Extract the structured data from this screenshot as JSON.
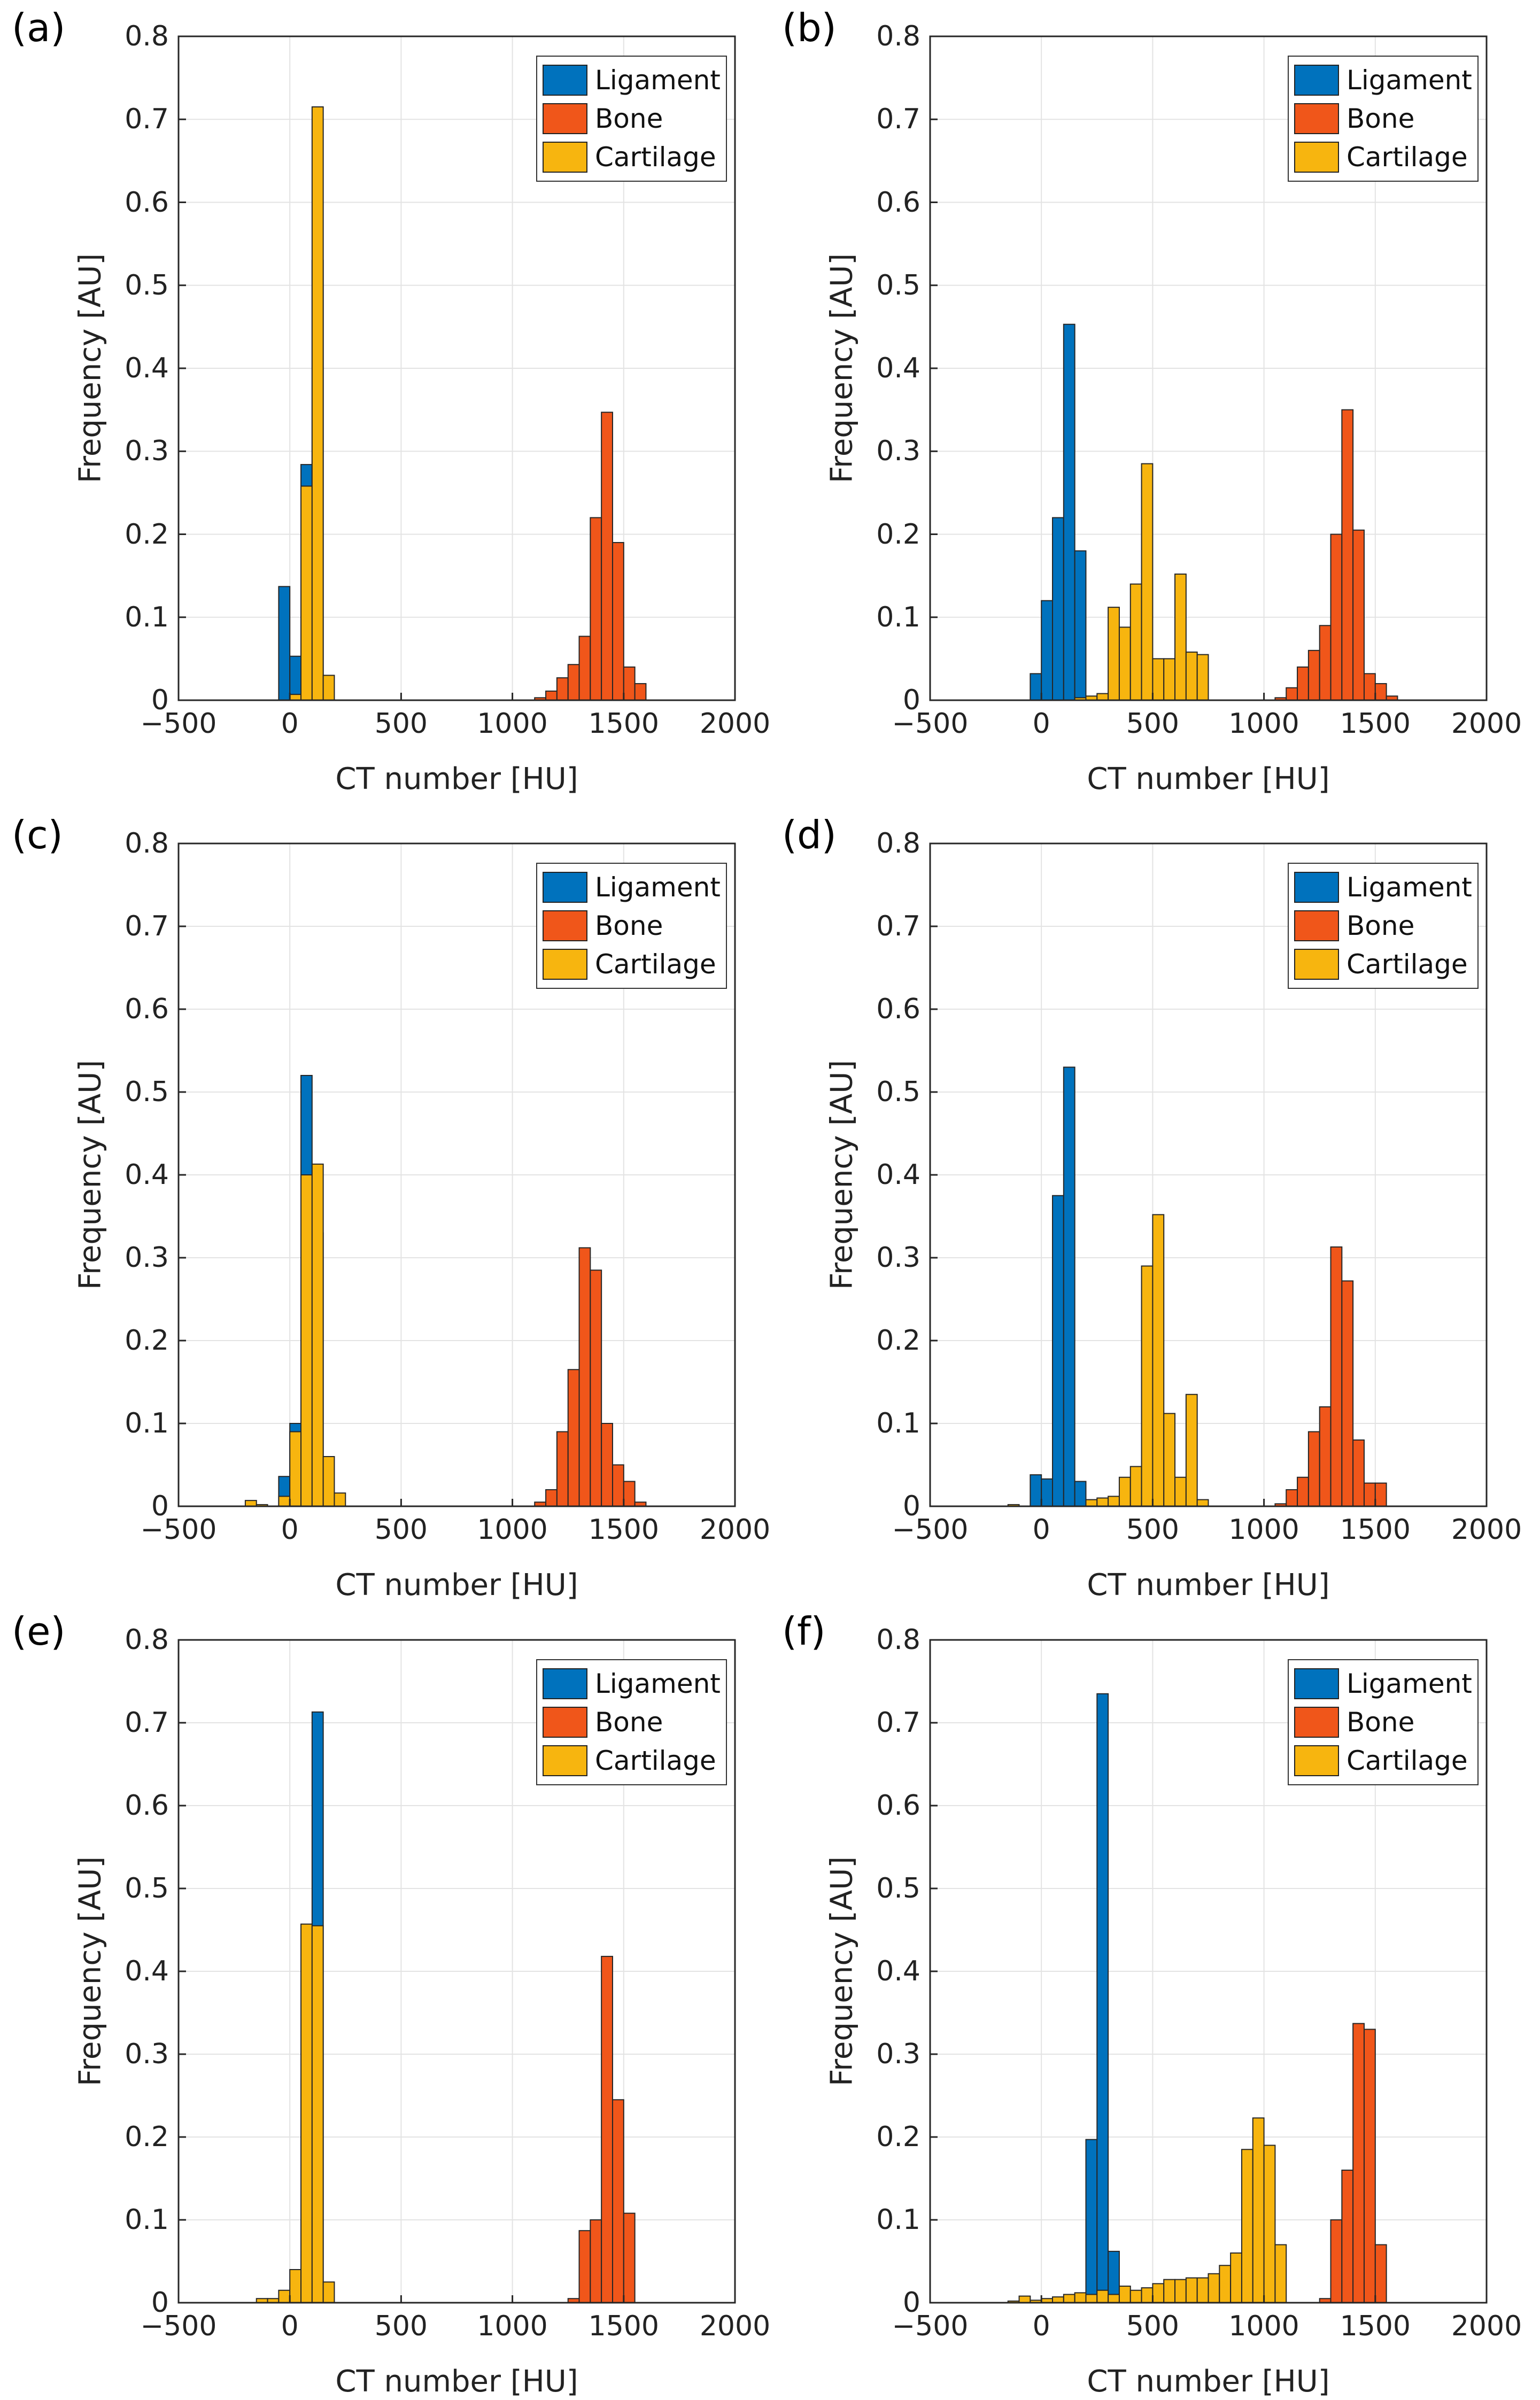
{
  "colors": {
    "ligament": "#0072BD",
    "bone": "#F0561A",
    "cartilage": "#F7B50F",
    "grid": "#E3E3E3",
    "axis": "#262626",
    "bar_edge": "#262626"
  },
  "chart_data": [
    {
      "type": "bar",
      "panel_label": "(a)",
      "xlabel": "CT number [HU]",
      "ylabel": "Frequency [AU]",
      "xlim": [
        -500,
        2000
      ],
      "ylim": [
        0,
        0.8
      ],
      "xticks": [
        -500,
        0,
        500,
        1000,
        1500,
        2000
      ],
      "yticks": [
        0,
        0.1,
        0.2,
        0.3,
        0.4,
        0.5,
        0.6,
        0.7,
        0.8
      ],
      "xtick_labels": [
        "−500",
        "0",
        "500",
        "1000",
        "1500",
        "2000"
      ],
      "ytick_labels": [
        "0",
        "0.1",
        "0.2",
        "0.3",
        "0.4",
        "0.5",
        "0.6",
        "0.7",
        "0.8"
      ],
      "grid": true,
      "legend_position": "top-right",
      "bin_width": 50,
      "series": [
        {
          "name": "Ligament",
          "color_key": "ligament",
          "bins": [
            [
              -50,
              0.137
            ],
            [
              0,
              0.053
            ],
            [
              50,
              0.284
            ],
            [
              100,
              0.53
            ]
          ]
        },
        {
          "name": "Bone",
          "color_key": "bone",
          "bins": [
            [
              1100,
              0.003
            ],
            [
              1150,
              0.011
            ],
            [
              1200,
              0.027
            ],
            [
              1250,
              0.043
            ],
            [
              1300,
              0.077
            ],
            [
              1350,
              0.22
            ],
            [
              1400,
              0.347
            ],
            [
              1450,
              0.19
            ],
            [
              1500,
              0.04
            ],
            [
              1550,
              0.02
            ]
          ]
        },
        {
          "name": "Cartilage",
          "color_key": "cartilage",
          "bins": [
            [
              0,
              0.007
            ],
            [
              50,
              0.258
            ],
            [
              100,
              0.715
            ],
            [
              150,
              0.03
            ]
          ]
        }
      ]
    },
    {
      "type": "bar",
      "panel_label": "(b)",
      "xlabel": "CT number [HU]",
      "ylabel": "Frequency [AU]",
      "xlim": [
        -500,
        2000
      ],
      "ylim": [
        0,
        0.8
      ],
      "xticks": [
        -500,
        0,
        500,
        1000,
        1500,
        2000
      ],
      "yticks": [
        0,
        0.1,
        0.2,
        0.3,
        0.4,
        0.5,
        0.6,
        0.7,
        0.8
      ],
      "xtick_labels": [
        "−500",
        "0",
        "500",
        "1000",
        "1500",
        "2000"
      ],
      "ytick_labels": [
        "0",
        "0.1",
        "0.2",
        "0.3",
        "0.4",
        "0.5",
        "0.6",
        "0.7",
        "0.8"
      ],
      "grid": true,
      "legend_position": "top-right",
      "bin_width": 50,
      "series": [
        {
          "name": "Ligament",
          "color_key": "ligament",
          "bins": [
            [
              -50,
              0.032
            ],
            [
              0,
              0.12
            ],
            [
              50,
              0.22
            ],
            [
              100,
              0.453
            ],
            [
              150,
              0.18
            ]
          ]
        },
        {
          "name": "Bone",
          "color_key": "bone",
          "bins": [
            [
              1050,
              0.003
            ],
            [
              1100,
              0.015
            ],
            [
              1150,
              0.04
            ],
            [
              1200,
              0.06
            ],
            [
              1250,
              0.09
            ],
            [
              1300,
              0.2
            ],
            [
              1350,
              0.35
            ],
            [
              1400,
              0.205
            ],
            [
              1450,
              0.032
            ],
            [
              1500,
              0.02
            ],
            [
              1550,
              0.005
            ]
          ]
        },
        {
          "name": "Cartilage",
          "color_key": "cartilage",
          "bins": [
            [
              150,
              0.003
            ],
            [
              200,
              0.005
            ],
            [
              250,
              0.008
            ],
            [
              300,
              0.112
            ],
            [
              350,
              0.088
            ],
            [
              400,
              0.14
            ],
            [
              450,
              0.285
            ],
            [
              500,
              0.05
            ],
            [
              550,
              0.05
            ],
            [
              600,
              0.152
            ],
            [
              650,
              0.058
            ],
            [
              700,
              0.055
            ]
          ]
        }
      ]
    },
    {
      "type": "bar",
      "panel_label": "(c)",
      "xlabel": "CT number [HU]",
      "ylabel": "Frequency [AU]",
      "xlim": [
        -500,
        2000
      ],
      "ylim": [
        0,
        0.8
      ],
      "xticks": [
        -500,
        0,
        500,
        1000,
        1500,
        2000
      ],
      "yticks": [
        0,
        0.1,
        0.2,
        0.3,
        0.4,
        0.5,
        0.6,
        0.7,
        0.8
      ],
      "xtick_labels": [
        "−500",
        "0",
        "500",
        "1000",
        "1500",
        "2000"
      ],
      "ytick_labels": [
        "0",
        "0.1",
        "0.2",
        "0.3",
        "0.4",
        "0.5",
        "0.6",
        "0.7",
        "0.8"
      ],
      "grid": true,
      "legend_position": "top-right",
      "bin_width": 50,
      "series": [
        {
          "name": "Ligament",
          "color_key": "ligament",
          "bins": [
            [
              -50,
              0.036
            ],
            [
              0,
              0.1
            ],
            [
              50,
              0.52
            ],
            [
              100,
              0.33
            ]
          ]
        },
        {
          "name": "Bone",
          "color_key": "bone",
          "bins": [
            [
              1100,
              0.005
            ],
            [
              1150,
              0.02
            ],
            [
              1200,
              0.09
            ],
            [
              1250,
              0.165
            ],
            [
              1300,
              0.312
            ],
            [
              1350,
              0.285
            ],
            [
              1400,
              0.1
            ],
            [
              1450,
              0.05
            ],
            [
              1500,
              0.03
            ],
            [
              1550,
              0.005
            ]
          ]
        },
        {
          "name": "Cartilage",
          "color_key": "cartilage",
          "bins": [
            [
              -200,
              0.007
            ],
            [
              -150,
              0.002
            ],
            [
              -50,
              0.012
            ],
            [
              0,
              0.09
            ],
            [
              50,
              0.4
            ],
            [
              100,
              0.413
            ],
            [
              150,
              0.06
            ],
            [
              200,
              0.016
            ]
          ]
        }
      ]
    },
    {
      "type": "bar",
      "panel_label": "(d)",
      "xlabel": "CT number [HU]",
      "ylabel": "Frequency [AU]",
      "xlim": [
        -500,
        2000
      ],
      "ylim": [
        0,
        0.8
      ],
      "xticks": [
        -500,
        0,
        500,
        1000,
        1500,
        2000
      ],
      "yticks": [
        0,
        0.1,
        0.2,
        0.3,
        0.4,
        0.5,
        0.6,
        0.7,
        0.8
      ],
      "xtick_labels": [
        "−500",
        "0",
        "500",
        "1000",
        "1500",
        "2000"
      ],
      "ytick_labels": [
        "0",
        "0.1",
        "0.2",
        "0.3",
        "0.4",
        "0.5",
        "0.6",
        "0.7",
        "0.8"
      ],
      "grid": true,
      "legend_position": "top-right",
      "bin_width": 50,
      "series": [
        {
          "name": "Ligament",
          "color_key": "ligament",
          "bins": [
            [
              -50,
              0.038
            ],
            [
              0,
              0.033
            ],
            [
              50,
              0.375
            ],
            [
              100,
              0.53
            ],
            [
              150,
              0.03
            ]
          ]
        },
        {
          "name": "Bone",
          "color_key": "bone",
          "bins": [
            [
              1050,
              0.003
            ],
            [
              1100,
              0.02
            ],
            [
              1150,
              0.035
            ],
            [
              1200,
              0.09
            ],
            [
              1250,
              0.12
            ],
            [
              1300,
              0.313
            ],
            [
              1350,
              0.272
            ],
            [
              1400,
              0.08
            ],
            [
              1450,
              0.028
            ],
            [
              1500,
              0.028
            ]
          ]
        },
        {
          "name": "Cartilage",
          "color_key": "cartilage",
          "bins": [
            [
              -150,
              0.002
            ],
            [
              200,
              0.008
            ],
            [
              250,
              0.01
            ],
            [
              300,
              0.012
            ],
            [
              350,
              0.035
            ],
            [
              400,
              0.048
            ],
            [
              450,
              0.29
            ],
            [
              500,
              0.352
            ],
            [
              550,
              0.112
            ],
            [
              600,
              0.035
            ],
            [
              650,
              0.135
            ],
            [
              700,
              0.008
            ]
          ]
        }
      ]
    },
    {
      "type": "bar",
      "panel_label": "(e)",
      "xlabel": "CT number [HU]",
      "ylabel": "Frequency [AU]",
      "xlim": [
        -500,
        2000
      ],
      "ylim": [
        0,
        0.8
      ],
      "xticks": [
        -500,
        0,
        500,
        1000,
        1500,
        2000
      ],
      "yticks": [
        0,
        0.1,
        0.2,
        0.3,
        0.4,
        0.5,
        0.6,
        0.7,
        0.8
      ],
      "xtick_labels": [
        "−500",
        "0",
        "500",
        "1000",
        "1500",
        "2000"
      ],
      "ytick_labels": [
        "0",
        "0.1",
        "0.2",
        "0.3",
        "0.4",
        "0.5",
        "0.6",
        "0.7",
        "0.8"
      ],
      "grid": true,
      "legend_position": "top-right",
      "bin_width": 50,
      "series": [
        {
          "name": "Ligament",
          "color_key": "ligament",
          "bins": [
            [
              50,
              0.27
            ],
            [
              100,
              0.713
            ]
          ]
        },
        {
          "name": "Bone",
          "color_key": "bone",
          "bins": [
            [
              1250,
              0.005
            ],
            [
              1300,
              0.087
            ],
            [
              1350,
              0.1
            ],
            [
              1400,
              0.418
            ],
            [
              1450,
              0.245
            ],
            [
              1500,
              0.108
            ]
          ]
        },
        {
          "name": "Cartilage",
          "color_key": "cartilage",
          "bins": [
            [
              -150,
              0.005
            ],
            [
              -100,
              0.005
            ],
            [
              -50,
              0.015
            ],
            [
              0,
              0.04
            ],
            [
              50,
              0.457
            ],
            [
              100,
              0.455
            ],
            [
              150,
              0.025
            ]
          ]
        }
      ]
    },
    {
      "type": "bar",
      "panel_label": "(f)",
      "xlabel": "CT number [HU]",
      "ylabel": "Frequency [AU]",
      "xlim": [
        -500,
        2000
      ],
      "ylim": [
        0,
        0.8
      ],
      "xticks": [
        -500,
        0,
        500,
        1000,
        1500,
        2000
      ],
      "yticks": [
        0,
        0.1,
        0.2,
        0.3,
        0.4,
        0.5,
        0.6,
        0.7,
        0.8
      ],
      "xtick_labels": [
        "−500",
        "0",
        "500",
        "1000",
        "1500",
        "2000"
      ],
      "ytick_labels": [
        "0",
        "0.1",
        "0.2",
        "0.3",
        "0.4",
        "0.5",
        "0.6",
        "0.7",
        "0.8"
      ],
      "grid": true,
      "legend_position": "top-right",
      "bin_width": 50,
      "series": [
        {
          "name": "Ligament",
          "color_key": "ligament",
          "bins": [
            [
              200,
              0.197
            ],
            [
              250,
              0.735
            ],
            [
              300,
              0.062
            ]
          ]
        },
        {
          "name": "Bone",
          "color_key": "bone",
          "bins": [
            [
              1250,
              0.005
            ],
            [
              1300,
              0.1
            ],
            [
              1350,
              0.16
            ],
            [
              1400,
              0.337
            ],
            [
              1450,
              0.33
            ],
            [
              1500,
              0.07
            ]
          ]
        },
        {
          "name": "Cartilage",
          "color_key": "cartilage",
          "bins": [
            [
              -150,
              0.002
            ],
            [
              -100,
              0.008
            ],
            [
              -50,
              0.003
            ],
            [
              0,
              0.005
            ],
            [
              50,
              0.007
            ],
            [
              100,
              0.01
            ],
            [
              150,
              0.012
            ],
            [
              200,
              0.01
            ],
            [
              250,
              0.015
            ],
            [
              300,
              0.01
            ],
            [
              350,
              0.02
            ],
            [
              400,
              0.015
            ],
            [
              450,
              0.018
            ],
            [
              500,
              0.023
            ],
            [
              550,
              0.028
            ],
            [
              600,
              0.028
            ],
            [
              650,
              0.03
            ],
            [
              700,
              0.03
            ],
            [
              750,
              0.035
            ],
            [
              800,
              0.045
            ],
            [
              850,
              0.06
            ],
            [
              900,
              0.185
            ],
            [
              950,
              0.223
            ],
            [
              1000,
              0.19
            ],
            [
              1050,
              0.07
            ]
          ]
        }
      ]
    }
  ]
}
